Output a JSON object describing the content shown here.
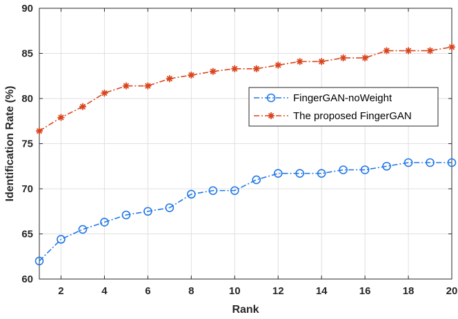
{
  "chart_data": {
    "type": "line",
    "title": "",
    "xlabel": "Rank",
    "ylabel": "Identification Rate (%)",
    "xlim": [
      1,
      20
    ],
    "ylim": [
      60,
      90
    ],
    "xticks": [
      2,
      4,
      6,
      8,
      10,
      12,
      14,
      16,
      18,
      20
    ],
    "yticks": [
      60,
      65,
      70,
      75,
      80,
      85,
      90
    ],
    "grid": true,
    "legend_position": "right",
    "x": [
      1,
      2,
      3,
      4,
      5,
      6,
      7,
      8,
      9,
      10,
      11,
      12,
      13,
      14,
      15,
      16,
      17,
      18,
      19,
      20
    ],
    "series": [
      {
        "name": "FingerGAN-noWeight",
        "color": "#1f77e6",
        "marker": "circle",
        "line_style": "dash-dot",
        "values": [
          62.0,
          64.4,
          65.5,
          66.3,
          67.1,
          67.5,
          67.9,
          69.4,
          69.8,
          69.8,
          71.0,
          71.7,
          71.7,
          71.7,
          72.1,
          72.1,
          72.5,
          72.9,
          72.9,
          72.9
        ]
      },
      {
        "name": "The proposed FingerGAN",
        "color": "#d9441c",
        "marker": "asterisk",
        "line_style": "dash-dot",
        "values": [
          76.4,
          77.9,
          79.1,
          80.6,
          81.4,
          81.4,
          82.2,
          82.6,
          83.0,
          83.3,
          83.3,
          83.7,
          84.1,
          84.1,
          84.5,
          84.5,
          85.3,
          85.3,
          85.3,
          85.7
        ]
      }
    ]
  }
}
